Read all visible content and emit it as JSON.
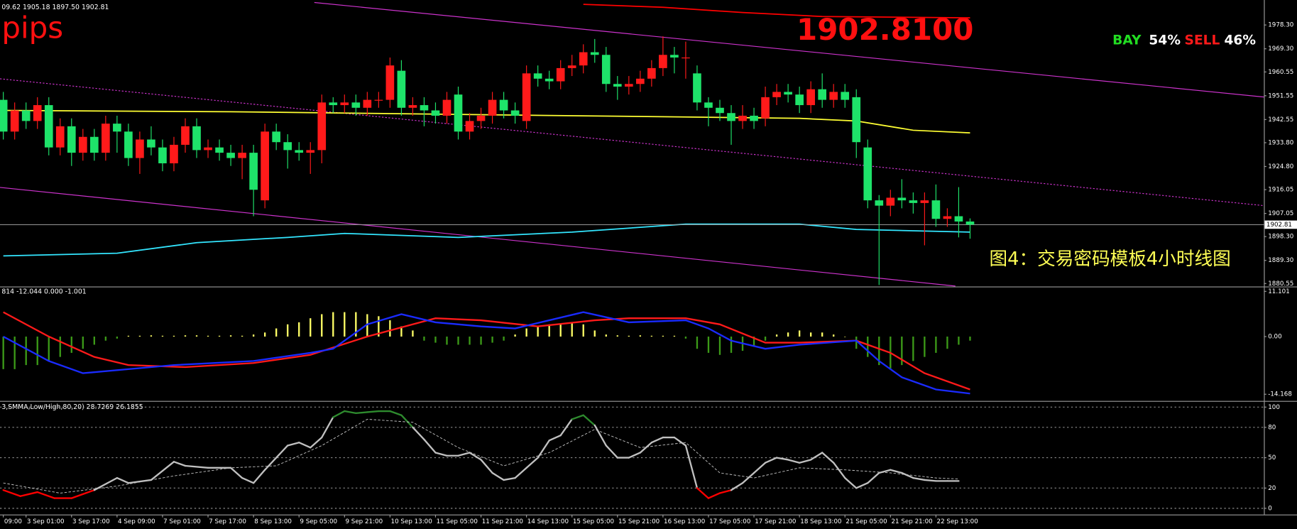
{
  "chart_data": [
    {
      "type": "candlestick",
      "header": "09.62 1905.18 1897.50 1902.81",
      "annotations": [
        "pips",
        "1902.8100",
        "BAY",
        "54%",
        "SELL",
        "46%",
        "图4：交易密码模板4小时线图"
      ],
      "categories": [
        "09:00",
        null,
        "3 Sep 01:00",
        null,
        null,
        null,
        "3 Sep 17:00",
        null,
        null,
        null,
        "4 Sep 09:00",
        null,
        null,
        null,
        "7 Sep 01:00",
        null,
        null,
        null,
        "7 Sep 17:00",
        null,
        null,
        null,
        "8 Sep 13:00",
        null,
        null,
        null,
        "9 Sep 05:00",
        null,
        null,
        null,
        "9 Sep 21:00",
        null,
        null,
        null,
        "10 Sep 13:00",
        null,
        null,
        null,
        "11 Sep 05:00",
        null,
        null,
        null,
        "11 Sep 21:00",
        null,
        null,
        null,
        "14 Sep 13:00",
        null,
        null,
        null,
        "15 Sep 05:00",
        null,
        null,
        null,
        "15 Sep 21:00",
        null,
        null,
        null,
        "16 Sep 13:00",
        null,
        null,
        null,
        "17 Sep 05:00",
        null,
        null,
        null,
        "17 Sep 21:00",
        null,
        null,
        null,
        "18 Sep 13:00",
        null,
        null,
        null,
        "21 Sep 05:00",
        null,
        null,
        null,
        "21 Sep 21:00",
        null,
        null,
        null,
        "22 Sep 13:00",
        null,
        null,
        null
      ],
      "open": [
        1950,
        1938,
        1946,
        1942,
        1948,
        1932,
        1940,
        1930,
        1936,
        1930,
        1941,
        1938,
        1928,
        1935,
        1932,
        1926,
        1933,
        1940,
        1931,
        1932,
        1930,
        1928,
        1930,
        1912,
        1938,
        1934,
        1931,
        1930,
        1931,
        1949,
        1948,
        1949,
        1947,
        1950,
        1950,
        1961,
        1947,
        1948,
        1946,
        1944,
        1952,
        1938,
        1942,
        1944,
        1950,
        1946,
        1942,
        1960,
        1958,
        1957,
        1962,
        1963,
        1968,
        1967,
        1956,
        1955,
        1956,
        1958,
        1962,
        1967,
        1966,
        1960,
        1949,
        1947,
        1945,
        1942,
        1944,
        1943,
        1951,
        1953,
        1952,
        1948,
        1954,
        1950,
        1953,
        1951,
        1932,
        1912,
        1910,
        1913,
        1912,
        1911,
        1912,
        1905,
        1906,
        1904
      ],
      "high": [
        1953,
        1949,
        1949,
        1951,
        1951,
        1943,
        1943,
        1939,
        1939,
        1944,
        1944,
        1941,
        1938,
        1940,
        1935,
        1936,
        1943,
        1943,
        1935,
        1935,
        1933,
        1933,
        1933,
        1941,
        1941,
        1937,
        1934,
        1934,
        1952,
        1951,
        1952,
        1952,
        1953,
        1953,
        1966,
        1965,
        1951,
        1951,
        1949,
        1953,
        1955,
        1945,
        1947,
        1953,
        1953,
        1949,
        1963,
        1963,
        1961,
        1965,
        1967,
        1971,
        1973,
        1970,
        1959,
        1959,
        1961,
        1965,
        1974,
        1970,
        1972,
        1963,
        1951,
        1950,
        1948,
        1948,
        1947,
        1955,
        1956,
        1956,
        1955,
        1957,
        1960,
        1956,
        1956,
        1954,
        1935,
        1914,
        1916,
        1920,
        1915,
        1915,
        1918,
        1909,
        1917,
        1905.18
      ],
      "low": [
        1935,
        1935,
        1939,
        1939,
        1929,
        1929,
        1925,
        1927,
        1927,
        1927,
        1930,
        1925,
        1922,
        1929,
        1923,
        1923,
        1930,
        1928,
        1928,
        1927,
        1925,
        1920,
        1906,
        1909,
        1931,
        1924,
        1927,
        1922,
        1926,
        1945,
        1945,
        1944,
        1944,
        1947,
        1947,
        1944,
        1944,
        1940,
        1941,
        1941,
        1935,
        1935,
        1939,
        1941,
        1943,
        1941,
        1939,
        1955,
        1954,
        1954,
        1959,
        1960,
        1964,
        1953,
        1950,
        1952,
        1953,
        1955,
        1959,
        1960,
        1958,
        1946,
        1940,
        1942,
        1933,
        1939,
        1939,
        1940,
        1948,
        1949,
        1945,
        1945,
        1947,
        1947,
        1947,
        1928,
        1909,
        1880,
        1906,
        1909,
        1907,
        1895,
        1902,
        1902,
        1898,
        1897.5
      ],
      "close": [
        1938,
        1946,
        1942,
        1948,
        1932,
        1940,
        1930,
        1936,
        1930,
        1941,
        1938,
        1928,
        1935,
        1932,
        1926,
        1933,
        1940,
        1931,
        1932,
        1930,
        1928,
        1930,
        1916,
        1938,
        1934,
        1931,
        1930,
        1931,
        1949,
        1948,
        1949,
        1947,
        1950,
        1950,
        1963,
        1947,
        1948,
        1946,
        1944,
        1950,
        1938,
        1942,
        1944,
        1950,
        1946,
        1944,
        1960,
        1958,
        1957,
        1962,
        1963,
        1968,
        1967,
        1956,
        1955,
        1956,
        1958,
        1962,
        1967,
        1966,
        1966,
        1949,
        1947,
        1945,
        1942,
        1944,
        1942,
        1951,
        1953,
        1952,
        1948,
        1954,
        1950,
        1953,
        1950,
        1934,
        1912,
        1910,
        1913,
        1912,
        1911,
        1912,
        1905,
        1906,
        1904,
        1902.81
      ],
      "up_color": "#ff1a1a",
      "down_color": "#1ee36a",
      "overlays": [
        {
          "color": "#ffff33",
          "x": [
            0,
            20,
            40,
            60,
            70,
            75,
            80,
            85
          ],
          "values": [
            1946,
            1945.5,
            1944.5,
            1943.5,
            1943,
            1942,
            1938.5,
            1937.5
          ]
        },
        {
          "color": "#33e6ff",
          "x": [
            0,
            10,
            17,
            25,
            30,
            40,
            50,
            60,
            70,
            75,
            85
          ],
          "values": [
            1891,
            1892,
            1896,
            1898,
            1899.5,
            1898,
            1900,
            1903,
            1903,
            1901,
            1900
          ]
        },
        {
          "color": "#ff0000",
          "x": [
            51,
            58,
            65,
            72,
            85
          ],
          "values": [
            1986.1,
            1985,
            1983,
            1981.5,
            1981
          ]
        }
      ],
      "ylim": [
        1879.6,
        1986.8
      ],
      "yticks": [
        {
          "value": 1978.3,
          "label": "1978.30"
        },
        {
          "value": 1969.3,
          "label": "1969.30"
        },
        1960.55,
        1951.55,
        1942.55,
        {
          "value": 1933.8,
          "label": "1933.80"
        },
        {
          "value": 1924.8,
          "label": "1924.80"
        },
        1916.05,
        1907.05,
        {
          "value": 1898.3,
          "label": "1898.30"
        },
        {
          "value": 1889.3,
          "label": "1889.30"
        },
        1880.55
      ],
      "current_price": 1902.81
    },
    {
      "type": "bar",
      "header": "814 -12.044 0.000 -1.001",
      "values": [
        -8,
        -8,
        -7,
        -7,
        -6,
        -5,
        -4,
        -3,
        -2,
        -1,
        -0.5,
        0.2,
        0.2,
        0.3,
        0.2,
        0.2,
        0.3,
        0.3,
        0.2,
        0.2,
        0.3,
        0.2,
        0.5,
        1,
        2,
        3,
        3.5,
        4.5,
        5.5,
        6,
        6,
        6,
        5.5,
        5,
        4,
        2.5,
        1.5,
        -1,
        -1.5,
        -2,
        -2,
        -2,
        -2,
        -1.5,
        -1,
        0.5,
        2,
        2.5,
        3,
        3,
        3.5,
        3,
        1.5,
        0.5,
        0.3,
        0.2,
        0.3,
        0.2,
        0.2,
        0.2,
        -0.5,
        -3,
        -4,
        -4.5,
        -4,
        -3.5,
        -2.5,
        -1,
        0.5,
        1,
        1.5,
        1,
        1,
        0.5,
        0,
        -3,
        -5,
        -7,
        -8,
        -7,
        -6,
        -5,
        -4,
        -3,
        -2,
        -1
      ],
      "positive_color": "#ffff66",
      "negative_color": "#3c9a18",
      "lines": [
        {
          "color": "#ff1a1a",
          "x": [
            0,
            4,
            8,
            11,
            16,
            22,
            27,
            32,
            36,
            38,
            42,
            47,
            52,
            55,
            60,
            63,
            67,
            70,
            75,
            78,
            81,
            85
          ],
          "values": [
            6,
            0,
            -5,
            -7,
            -7.5,
            -6.5,
            -4.5,
            0,
            3,
            4.5,
            4,
            2.5,
            4,
            4.5,
            4.5,
            3,
            -1.5,
            -1.5,
            -1,
            -4,
            -9,
            -13
          ]
        },
        {
          "color": "#1a2bff",
          "x": [
            0,
            4,
            7,
            11,
            15,
            22,
            27,
            29,
            32,
            35,
            38,
            42,
            45,
            48,
            51,
            55,
            60,
            62,
            64,
            67,
            70,
            75,
            77,
            79,
            82,
            85
          ],
          "values": [
            0,
            -6,
            -9,
            -8,
            -7,
            -6,
            -4,
            -3,
            3,
            5.5,
            3.5,
            2.5,
            2,
            4,
            6,
            3.5,
            4,
            2,
            -1,
            -3,
            -2,
            -1,
            -6,
            -10,
            -13,
            -14
          ]
        }
      ],
      "ylim": [
        -15.7,
        12.0
      ],
      "yticks": [
        11.101,
        {
          "value": 0,
          "label": "0.00"
        },
        -14.168
      ]
    },
    {
      "type": "line",
      "header": "3,SMMA,Low/High,80,20) 28.7269 26.1855",
      "series": [
        {
          "color": "#c0c0c0",
          "overbought_color": "#2e8b2e",
          "oversold_color": "#ff0000",
          "x": [
            0,
            1.5,
            3,
            4.5,
            6,
            8,
            10,
            11,
            13,
            15,
            16,
            18,
            20,
            21,
            22,
            23,
            24,
            25,
            26,
            27,
            28,
            29,
            30,
            31,
            32,
            33,
            34,
            35,
            36,
            37,
            38,
            39,
            40,
            41,
            42,
            43,
            44,
            45,
            46,
            47,
            48,
            49,
            50,
            51,
            52,
            53,
            54,
            55,
            56,
            57,
            58,
            59,
            60,
            61,
            62,
            63,
            64,
            65,
            66,
            67,
            68,
            69,
            70,
            71,
            72,
            73,
            74,
            75,
            76,
            77,
            78,
            79,
            80,
            81,
            82,
            83,
            84
          ],
          "values": [
            18,
            12,
            16,
            10,
            10,
            18,
            30,
            25,
            28,
            46,
            42,
            40,
            40,
            30,
            25,
            38,
            50,
            62,
            65,
            60,
            70,
            90,
            96,
            94,
            95,
            96,
            96,
            92,
            80,
            68,
            55,
            52,
            52,
            55,
            48,
            35,
            28,
            30,
            40,
            50,
            67,
            72,
            88,
            92,
            82,
            62,
            50,
            50,
            55,
            65,
            70,
            70,
            62,
            20,
            10,
            15,
            18,
            25,
            35,
            45,
            50,
            48,
            45,
            48,
            55,
            45,
            30,
            20,
            25,
            35,
            38,
            35,
            30,
            28,
            27,
            27,
            27
          ]
        },
        {
          "color": "#c0c0c0",
          "dashed": true,
          "x": [
            0,
            5,
            10,
            15,
            20,
            24,
            28,
            32,
            36,
            40,
            44,
            48,
            52,
            56,
            60,
            63,
            66,
            70,
            74,
            78,
            82,
            84
          ],
          "values": [
            25,
            15,
            22,
            32,
            40,
            42,
            62,
            88,
            85,
            60,
            42,
            55,
            78,
            60,
            65,
            35,
            30,
            40,
            38,
            35,
            30,
            29
          ]
        }
      ],
      "ylim": [
        -5.7,
        104.9
      ],
      "yticks": [
        100,
        80,
        50,
        20,
        0
      ],
      "grid": true
    }
  ]
}
